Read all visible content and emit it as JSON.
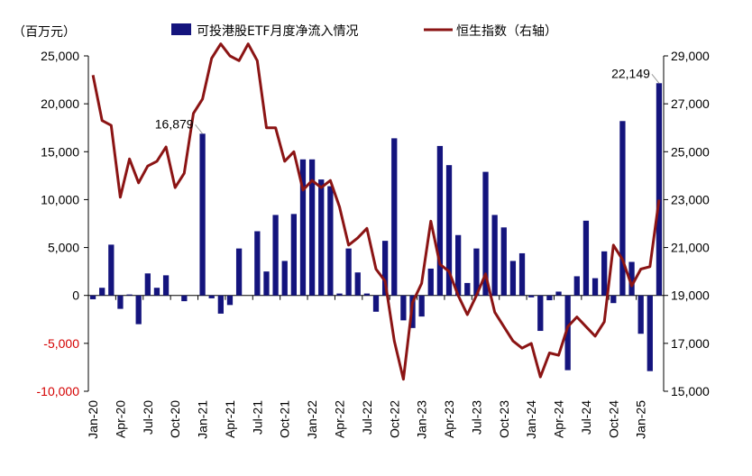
{
  "chart_data": {
    "type": "bar+line",
    "unit_label": "（百万元）",
    "legend": {
      "placement": "top",
      "bar_label": "可投港股ETF月度净流入情况",
      "line_label": "恒生指数（右轴）"
    },
    "colors": {
      "bar": "#14147d",
      "line": "#8b1414",
      "negative_tick": "#d40000",
      "axis": "#000000"
    },
    "left_axis": {
      "ylim": [
        -10000,
        25000
      ],
      "ticks": [
        -10000,
        -5000,
        0,
        5000,
        10000,
        15000,
        20000,
        25000
      ],
      "tick_labels": [
        "-10,000",
        "-5,000",
        "0",
        "5,000",
        "10,000",
        "15,000",
        "20,000",
        "25,000"
      ]
    },
    "right_axis": {
      "ylim": [
        15000,
        29000
      ],
      "ticks": [
        15000,
        17000,
        19000,
        21000,
        23000,
        25000,
        27000,
        29000
      ],
      "tick_labels": [
        "15,000",
        "17,000",
        "19,000",
        "21,000",
        "23,000",
        "25,000",
        "27,000",
        "29,000"
      ]
    },
    "x_ticks": [
      {
        "index": 0,
        "label": "Jan-20"
      },
      {
        "index": 3,
        "label": "Apr-20"
      },
      {
        "index": 6,
        "label": "Jul-20"
      },
      {
        "index": 9,
        "label": "Oct-20"
      },
      {
        "index": 12,
        "label": "Jan-21"
      },
      {
        "index": 15,
        "label": "Apr-21"
      },
      {
        "index": 18,
        "label": "Jul-21"
      },
      {
        "index": 21,
        "label": "Oct-21"
      },
      {
        "index": 24,
        "label": "Jan-22"
      },
      {
        "index": 27,
        "label": "Apr-22"
      },
      {
        "index": 30,
        "label": "Jul-22"
      },
      {
        "index": 33,
        "label": "Oct-22"
      },
      {
        "index": 36,
        "label": "Jan-23"
      },
      {
        "index": 39,
        "label": "Apr-23"
      },
      {
        "index": 42,
        "label": "Jul-23"
      },
      {
        "index": 45,
        "label": "Oct-23"
      },
      {
        "index": 48,
        "label": "Jan-24"
      },
      {
        "index": 51,
        "label": "Apr-24"
      },
      {
        "index": 54,
        "label": "Jul-24"
      },
      {
        "index": 57,
        "label": "Oct-24"
      },
      {
        "index": 60,
        "label": "Jan-25"
      }
    ],
    "bar_values": [
      -400,
      800,
      5300,
      -1400,
      100,
      -3000,
      2300,
      800,
      2100,
      0,
      -600,
      0,
      16879,
      -300,
      -1900,
      -1000,
      4900,
      0,
      6700,
      2500,
      8400,
      3600,
      8500,
      14200,
      14200,
      12100,
      11400,
      200,
      4900,
      2400,
      200,
      -1700,
      5700,
      16400,
      -2600,
      -3400,
      -2200,
      2800,
      15600,
      13600,
      6300,
      1300,
      4900,
      12900,
      8400,
      7100,
      3600,
      4400,
      -200,
      -3700,
      -500,
      400,
      -7800,
      2000,
      7800,
      1800,
      4600,
      -800,
      18200,
      3500,
      -4000,
      -7900,
      22149
    ],
    "line_values": [
      28200,
      26300,
      26100,
      23100,
      24700,
      23700,
      24400,
      24600,
      25200,
      23500,
      24100,
      26600,
      27200,
      28900,
      29500,
      29000,
      28800,
      29500,
      28800,
      26000,
      26000,
      24600,
      25000,
      23400,
      23800,
      23500,
      23800,
      22700,
      21100,
      21400,
      21800,
      20100,
      19600,
      17100,
      15500,
      18700,
      19500,
      22100,
      20300,
      20000,
      19000,
      18200,
      19000,
      19900,
      18300,
      17700,
      17100,
      16800,
      17000,
      15600,
      16600,
      16500,
      17700,
      18100,
      17700,
      17300,
      17900,
      21100,
      20500,
      19400,
      20100,
      20200,
      23000
    ],
    "annotations": [
      {
        "index": 12,
        "label": "16,879"
      },
      {
        "index": 62,
        "label": "22,149"
      }
    ]
  }
}
